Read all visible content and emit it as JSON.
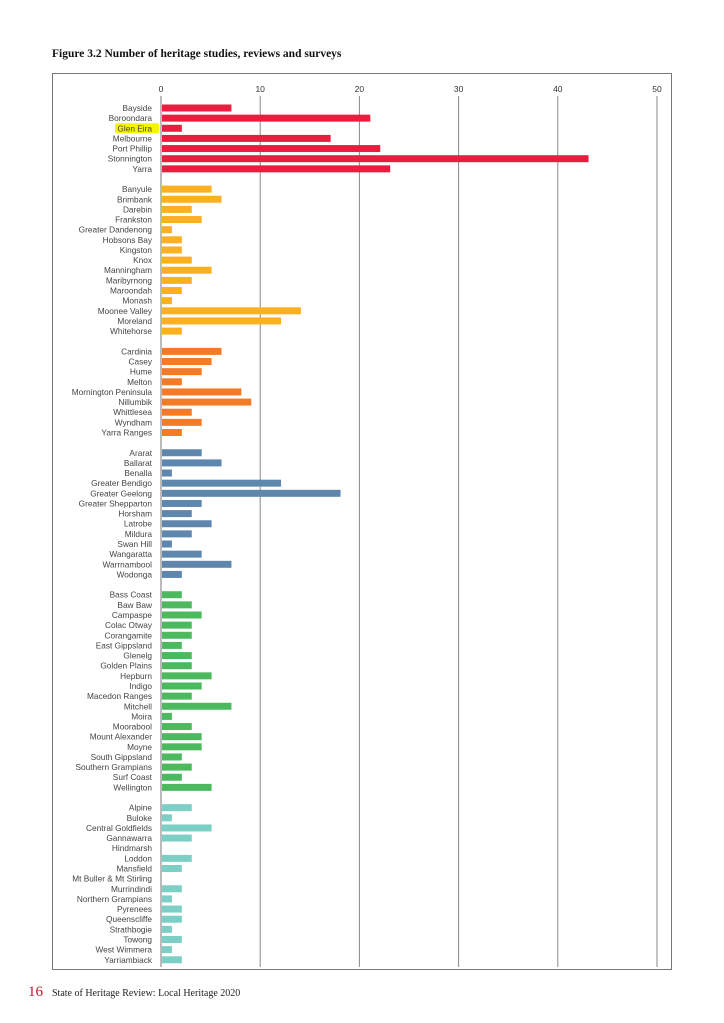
{
  "chart_data": {
    "type": "bar",
    "orientation": "horizontal",
    "title": "Figure 3.2 Number of heritage studies, reviews and surveys",
    "xlabel": "",
    "ylabel": "",
    "xlim": [
      0,
      50
    ],
    "xticks": [
      0,
      10,
      20,
      30,
      40,
      50
    ],
    "grid": true,
    "highlighted": "Glen Eira",
    "highlight_color": "#f5f500",
    "groups": [
      {
        "color": "#e91e3f",
        "categories": [
          "Bayside",
          "Boroondara",
          "Glen Eira",
          "Melbourne",
          "Port Phillip",
          "Stonnington",
          "Yarra"
        ],
        "values": [
          7,
          21,
          2,
          17,
          22,
          43,
          23
        ]
      },
      {
        "color": "#fbb021",
        "categories": [
          "Banyule",
          "Brimbank",
          "Darebin",
          "Frankston",
          "Greater Dandenong",
          "Hobsons Bay",
          "Kingston",
          "Knox",
          "Manningham",
          "Maribyrnong",
          "Maroondah",
          "Monash",
          "Moonee Valley",
          "Moreland",
          "Whitehorse"
        ],
        "values": [
          5,
          6,
          3,
          4,
          1,
          2,
          2,
          3,
          5,
          3,
          2,
          1,
          14,
          12,
          2
        ]
      },
      {
        "color": "#f47a26",
        "categories": [
          "Cardinia",
          "Casey",
          "Hume",
          "Melton",
          "Mornington Peninsula",
          "Nillumbik",
          "Whittlesea",
          "Wyndham",
          "Yarra Ranges"
        ],
        "values": [
          6,
          5,
          4,
          2,
          8,
          9,
          3,
          4,
          2
        ]
      },
      {
        "color": "#5f87ae",
        "categories": [
          "Ararat",
          "Ballarat",
          "Benalla",
          "Greater Bendigo",
          "Greater Geelong",
          "Greater Shepparton",
          "Horsham",
          "Latrobe",
          "Mildura",
          "Swan Hill",
          "Wangaratta",
          "Warrnambool",
          "Wodonga"
        ],
        "values": [
          4,
          6,
          1,
          12,
          18,
          4,
          3,
          5,
          3,
          1,
          4,
          7,
          2
        ]
      },
      {
        "color": "#4cb95e",
        "categories": [
          "Bass Coast",
          "Baw Baw",
          "Campaspe",
          "Colac Otway",
          "Corangamite",
          "East Gippsland",
          "Glenelg",
          "Golden Plains",
          "Hepburn",
          "Indigo",
          "Macedon Ranges",
          "Mitchell",
          "Moira",
          "Moorabool",
          "Mount Alexander",
          "Moyne",
          "South Gippsland",
          "Southern Grampians",
          "Surf Coast",
          "Wellington"
        ],
        "values": [
          2,
          3,
          4,
          3,
          3,
          2,
          3,
          3,
          5,
          4,
          3,
          7,
          1,
          3,
          4,
          4,
          2,
          3,
          2,
          5
        ]
      },
      {
        "color": "#7ccfc5",
        "categories": [
          "Alpine",
          "Buloke",
          "Central Goldfields",
          "Gannawarra",
          "Hindmarsh",
          "Loddon",
          "Mansfield",
          "Mt Buller & Mt Stirling",
          "Murrindindi",
          "Northern Grampians",
          "Pyrenees",
          "Queenscliffe",
          "Strathbogie",
          "Towong",
          "West Wimmera",
          "Yarriambiack"
        ],
        "values": [
          3,
          1,
          5,
          3,
          0,
          3,
          2,
          0,
          2,
          1,
          2,
          2,
          1,
          2,
          1,
          2
        ]
      }
    ]
  },
  "footer": {
    "page_number": "16",
    "publication": "State of Heritage Review: Local Heritage 2020"
  }
}
